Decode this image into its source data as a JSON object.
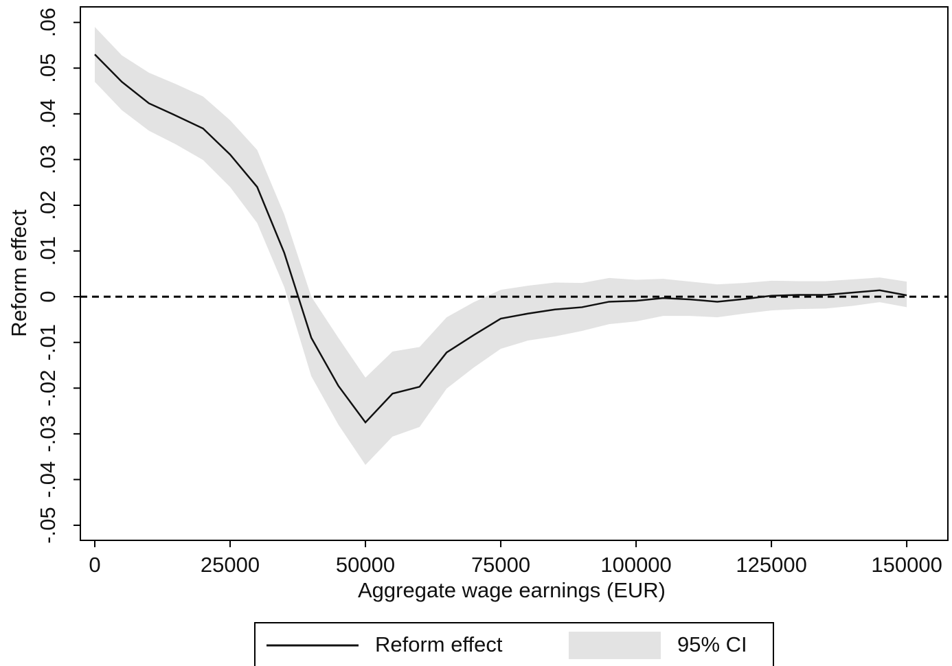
{
  "chart_data": {
    "type": "line",
    "x_label": "Aggregate wage earnings (EUR)",
    "y_label": "Reform effect",
    "x": [
      0,
      5000,
      10000,
      15000,
      20000,
      25000,
      30000,
      35000,
      40000,
      45000,
      50000,
      55000,
      60000,
      65000,
      70000,
      75000,
      80000,
      85000,
      90000,
      95000,
      100000,
      105000,
      110000,
      115000,
      120000,
      125000,
      130000,
      135000,
      140000,
      145000,
      150000
    ],
    "series": [
      {
        "name": "Reform effect",
        "color": "#111111",
        "values": [
          0.053,
          0.047,
          0.0423,
          0.0396,
          0.0368,
          0.0311,
          0.024,
          0.0096,
          -0.009,
          -0.0195,
          -0.0275,
          -0.0212,
          -0.0197,
          -0.0122,
          -0.0084,
          -0.0048,
          -0.0037,
          -0.0028,
          -0.0023,
          -0.0011,
          -0.0009,
          -0.0003,
          -0.0006,
          -0.0011,
          -0.0005,
          0.0002,
          0.0004,
          0.0004,
          0.0009,
          0.0014,
          0.0003
        ]
      },
      {
        "name": "95% CI",
        "color": "#e3e3e3",
        "upper": [
          0.059,
          0.0528,
          0.049,
          0.0465,
          0.0438,
          0.0386,
          0.0321,
          0.018,
          0,
          -0.009,
          -0.0177,
          -0.012,
          -0.011,
          -0.0045,
          -0.0012,
          0.0015,
          0.0024,
          0.0031,
          0.003,
          0.0041,
          0.0037,
          0.0039,
          0.0033,
          0.0027,
          0.003,
          0.0035,
          0.0034,
          0.0034,
          0.0038,
          0.0042,
          0.0033
        ],
        "lower": [
          0.047,
          0.0408,
          0.0363,
          0.0333,
          0.0299,
          0.024,
          0.0161,
          0.0021,
          -0.0174,
          -0.028,
          -0.0368,
          -0.0306,
          -0.0285,
          -0.0201,
          -0.0155,
          -0.0114,
          -0.0096,
          -0.0087,
          -0.0075,
          -0.006,
          -0.0054,
          -0.0042,
          -0.0042,
          -0.0045,
          -0.0037,
          -0.003,
          -0.0027,
          -0.0026,
          -0.002,
          -0.0012,
          -0.0023
        ]
      }
    ],
    "reference_line": 0,
    "xlim": [
      -2665,
      157600
    ],
    "ylim": [
      -0.0533,
      0.0634
    ],
    "xticks": [
      0,
      25000,
      50000,
      75000,
      100000,
      125000,
      150000
    ],
    "yticks": [
      {
        "value": -0.05,
        "label": "-.05"
      },
      {
        "value": -0.04,
        "label": "-.04"
      },
      {
        "value": -0.03,
        "label": "-.03"
      },
      {
        "value": -0.02,
        "label": "-.02"
      },
      {
        "value": -0.01,
        "label": "-.01"
      },
      0,
      {
        "value": 0.01,
        "label": ".01"
      },
      {
        "value": 0.02,
        "label": ".02"
      },
      {
        "value": 0.03,
        "label": ".03"
      },
      {
        "value": 0.04,
        "label": ".04"
      },
      {
        "value": 0.05,
        "label": ".05"
      },
      {
        "value": 0.06,
        "label": ".06"
      }
    ],
    "legend": "bottom"
  }
}
